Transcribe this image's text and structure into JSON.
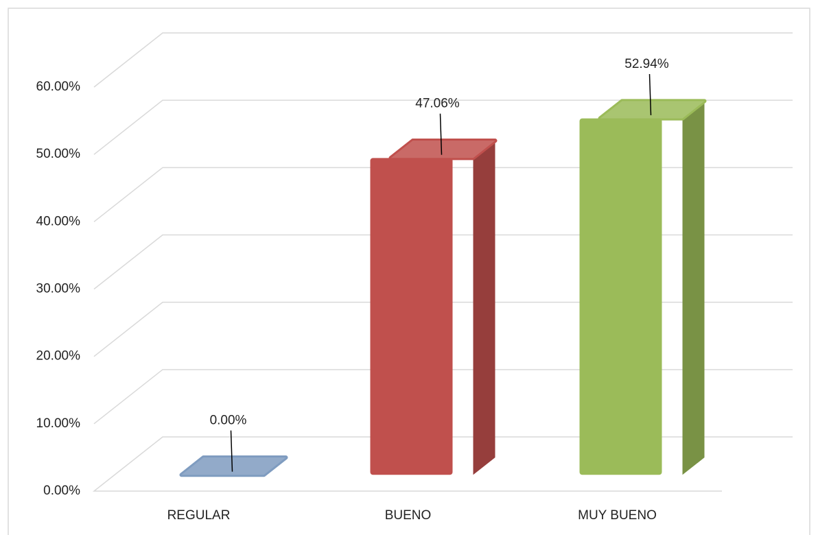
{
  "chart_data": {
    "type": "bar3d",
    "categories": [
      "REGULAR",
      "BUENO",
      "MUY BUENO"
    ],
    "values": [
      0,
      47.06,
      52.94
    ],
    "value_labels": [
      "0.00%",
      "47.06%",
      "52.94%"
    ],
    "colors": [
      "#7f9cc0",
      "#c0504d",
      "#9bbb59"
    ],
    "ylim": [
      0,
      60
    ],
    "yticks": [
      {
        "value": 0,
        "label": "0.00%"
      },
      {
        "value": 10,
        "label": "10.00%"
      },
      {
        "value": 20,
        "label": "20.00%"
      },
      {
        "value": 30,
        "label": "30.00%"
      },
      {
        "value": 40,
        "label": "40.00%"
      },
      {
        "value": 50,
        "label": "50.00%"
      },
      {
        "value": 60,
        "label": "60.00%"
      }
    ],
    "grid": true
  }
}
